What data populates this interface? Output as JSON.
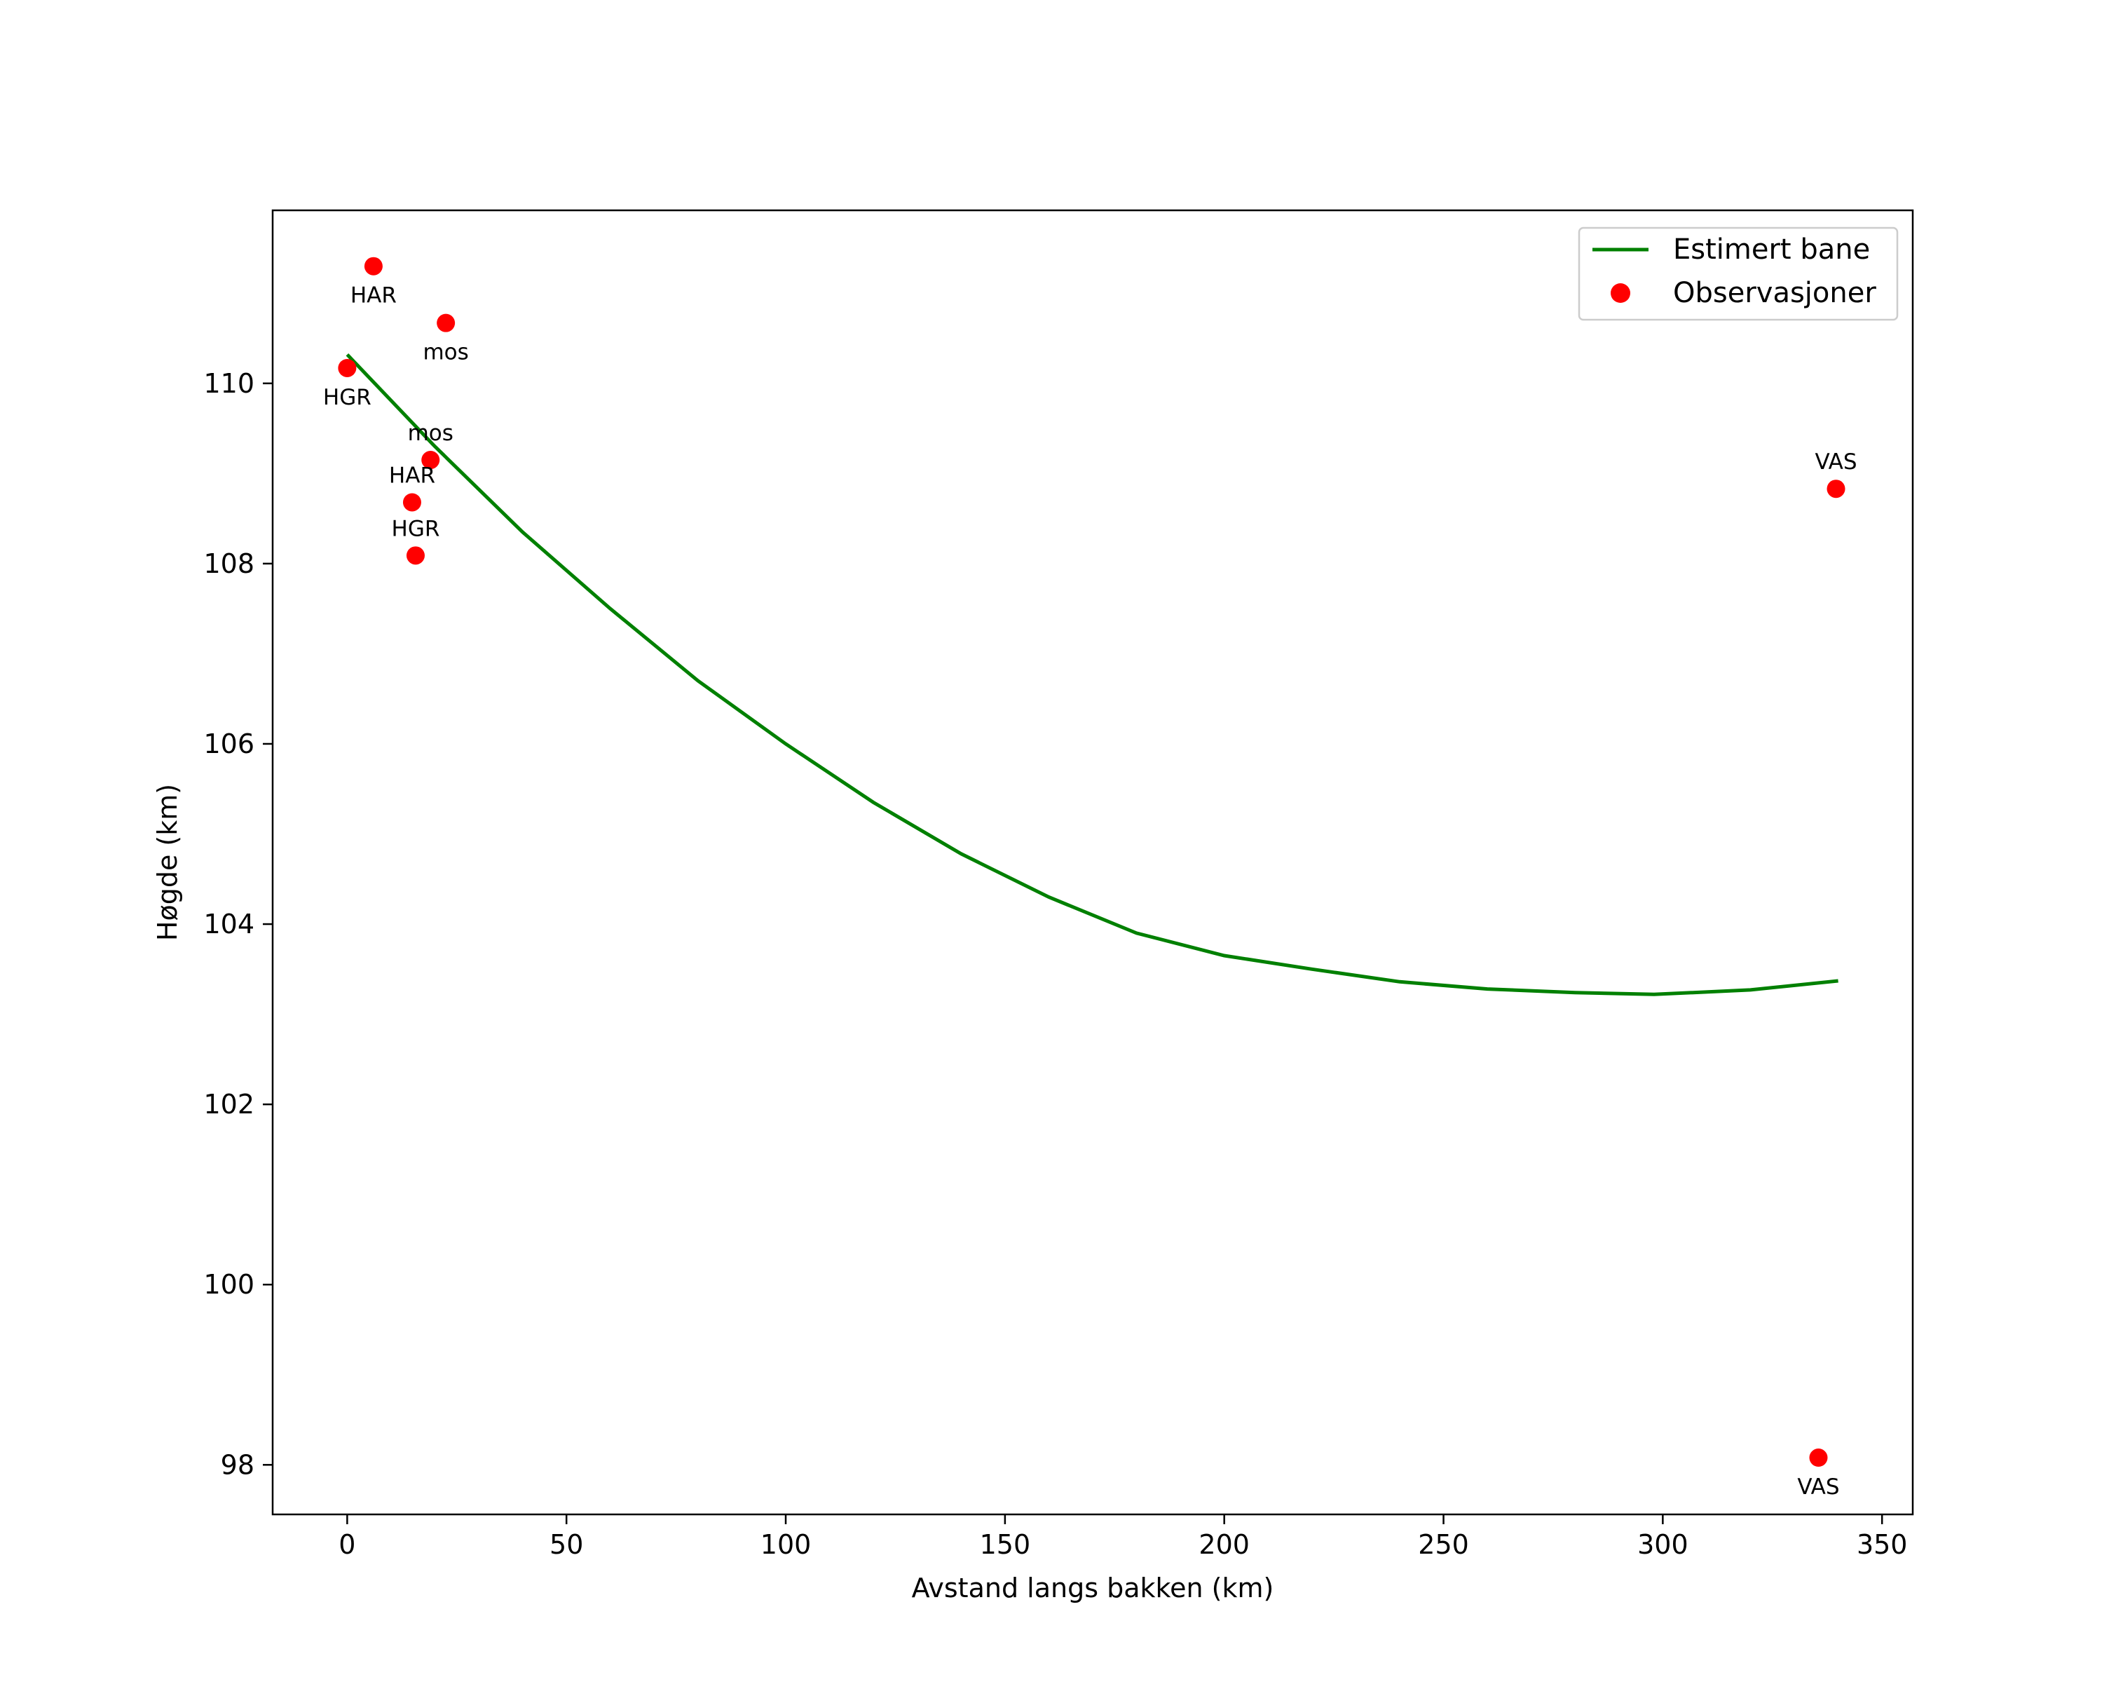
{
  "chart_data": {
    "type": "line+scatter",
    "title": "",
    "xlabel": "Avstand langs bakken (km)",
    "ylabel": "Høgde (km)",
    "xlim": [
      -17,
      357
    ],
    "ylim": [
      97.45,
      111.92
    ],
    "xticks": [
      0,
      50,
      100,
      150,
      200,
      250,
      300,
      350
    ],
    "yticks": [
      98,
      100,
      102,
      104,
      106,
      108,
      110
    ],
    "grid": false,
    "legend_position": "top-right",
    "colors": {
      "line": "#008000",
      "points": "#ff0000",
      "axes": "#000000"
    },
    "series": [
      {
        "name": "Estimert bane",
        "kind": "line",
        "x": [
          0,
          20,
          40,
          60,
          80,
          100,
          120,
          140,
          160,
          180,
          200,
          220,
          240,
          260,
          280,
          298,
          320,
          340
        ],
        "y": [
          110.32,
          109.3,
          108.35,
          107.5,
          106.7,
          106.0,
          105.35,
          104.78,
          104.3,
          103.9,
          103.65,
          103.5,
          103.36,
          103.28,
          103.24,
          103.22,
          103.27,
          103.37
        ]
      },
      {
        "name": "Observasjoner",
        "kind": "scatter",
        "points": [
          {
            "x": 6,
            "y": 111.3,
            "label": "HAR",
            "label_pos": "below"
          },
          {
            "x": 22.5,
            "y": 110.67,
            "label": "mos",
            "label_pos": "below"
          },
          {
            "x": 0,
            "y": 110.17,
            "label": "HGR",
            "label_pos": "below"
          },
          {
            "x": 19,
            "y": 109.15,
            "label": "mos",
            "label_pos": "above"
          },
          {
            "x": 14.8,
            "y": 108.68,
            "label": "HAR",
            "label_pos": "above"
          },
          {
            "x": 15.6,
            "y": 108.09,
            "label": "HGR",
            "label_pos": "above"
          },
          {
            "x": 339.5,
            "y": 108.83,
            "label": "VAS",
            "label_pos": "above"
          },
          {
            "x": 335.5,
            "y": 98.08,
            "label": "VAS",
            "label_pos": "below"
          }
        ]
      }
    ]
  }
}
